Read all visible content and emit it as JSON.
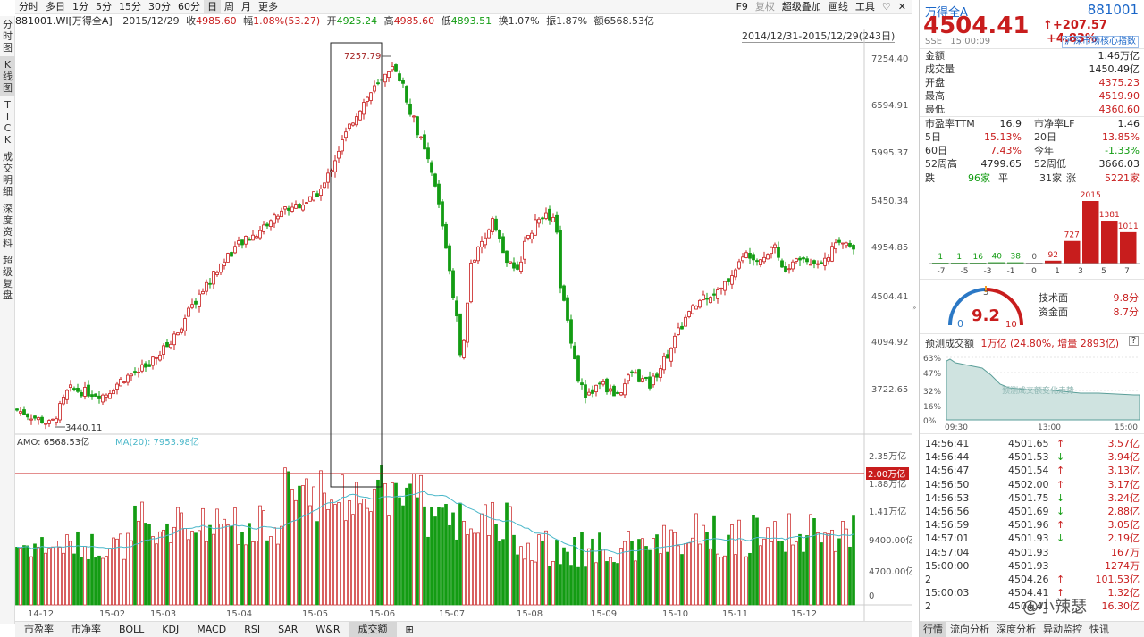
{
  "left_nav": [
    "分\n时\n图",
    "K\n线\n图",
    "T\nI\nC\nK",
    "成\n交\n明\n细",
    "深\n度\n资\n料",
    "超\n级\n复\n盘"
  ],
  "toolbar": {
    "periods": [
      "分时",
      "多日",
      "1分",
      "5分",
      "15分",
      "30分",
      "60分",
      "日",
      "周",
      "月",
      "更多"
    ],
    "active_period": "日",
    "right": [
      "F9",
      "复权",
      "超级叠加",
      "画线",
      "工具"
    ],
    "icons": [
      "heart-icon",
      "close-icon"
    ]
  },
  "infobar": {
    "code": "881001.WI[万得全A]",
    "date": "2015/12/29",
    "close_label": "收",
    "close": "4985.60",
    "change_label": "幅",
    "change": "1.08%(53.27)",
    "open_label": "开",
    "open": "4925.24",
    "high_label": "高",
    "high": "4985.60",
    "low_label": "低",
    "low": "4893.51",
    "turnover_label": "换",
    "turnover": "1.07%",
    "amplitude_label": "振",
    "amplitude": "1.87%",
    "amount_label": "额",
    "amount": "6568.53亿",
    "range": "2014/12/31-2015/12/29(243日)"
  },
  "main_chart": {
    "y_ticks": [
      "7254.40",
      "6594.91",
      "5995.37",
      "5450.34",
      "4954.85",
      "4504.41",
      "4094.92",
      "3722.65"
    ],
    "max_label": "7257.79",
    "min_label": "3440.11",
    "amo_label": "AMO: 6568.53亿",
    "ma_label": "MA(20): 7953.98亿",
    "vol_ticks": [
      "2.35万亿",
      "1.88万亿",
      "1.41万亿",
      "9400.00亿",
      "4700.00亿",
      "0"
    ],
    "vol_ref": "2.00万亿",
    "x_ticks": [
      "14-12",
      "15-02",
      "15-03",
      "15-04",
      "15-05",
      "15-06",
      "15-07",
      "15-08",
      "15-09",
      "15-10",
      "15-11",
      "15-12"
    ]
  },
  "bottom_tabs": [
    "市盈率",
    "市净率",
    "BOLL",
    "KDJ",
    "MACD",
    "RSI",
    "SAR",
    "W&R",
    "成交额"
  ],
  "bottom_active": "成交额",
  "quote": {
    "name": "万得全A",
    "code": "881001",
    "price": "4504.41",
    "change": "+207.57",
    "pct": "+4.83%",
    "exchange": "SSE",
    "time": "15:00:09",
    "index_link": "沪深市场核心指数"
  },
  "stats": [
    {
      "l": "金额",
      "r": "1.46万亿",
      "c": "blk"
    },
    {
      "l": "成交量",
      "r": "1450.49亿",
      "c": "blk"
    },
    {
      "l": "开盘",
      "r": "4375.23",
      "c": "red"
    },
    {
      "l": "最高",
      "r": "4519.90",
      "c": "red"
    },
    {
      "l": "最低",
      "r": "4360.60",
      "c": "red"
    }
  ],
  "stats2": [
    {
      "l": "市盈率TTM",
      "r": "16.9",
      "c": "blk",
      "l2": "市净率LF",
      "r2": "1.46",
      "c2": "blk"
    },
    {
      "l": "5日",
      "r": "15.13%",
      "c": "red",
      "l2": "20日",
      "r2": "13.85%",
      "c2": "red"
    },
    {
      "l": "60日",
      "r": "7.43%",
      "c": "red",
      "l2": "今年",
      "r2": "-1.33%",
      "c2": "green"
    },
    {
      "l": "52周高",
      "r": "4799.65",
      "c": "blk",
      "l2": "52周低",
      "r2": "3666.03",
      "c2": "blk"
    }
  ],
  "breadth": {
    "down_label": "跌",
    "down": "96家",
    "flat_label": "平",
    "flat": "31家",
    "up_label": "涨",
    "up": "5221家"
  },
  "distribution": {
    "x_labels": [
      "-7",
      "-5",
      "-3",
      "-1",
      "0",
      "1",
      "3",
      "5",
      "7"
    ],
    "values": [
      1,
      1,
      16,
      40,
      38,
      0,
      92,
      727,
      2015,
      1381,
      1011
    ],
    "value_labels": [
      "1",
      "1",
      "16",
      "40",
      "38",
      "0",
      "92",
      "727",
      "2015",
      "1381",
      "1011"
    ]
  },
  "gauge": {
    "score": "9.2",
    "min": "0",
    "mid": "5",
    "max": "10",
    "tech_label": "技术面",
    "tech": "9.8分",
    "fund_label": "资金面",
    "fund": "8.7分"
  },
  "forecast": {
    "label": "预测成交额",
    "value": "1万亿 (24.80%, 增量 2893亿)",
    "y_ticks": [
      "63%",
      "47%",
      "32%",
      "16%",
      "0%"
    ],
    "x_ticks": [
      "09:30",
      "13:00",
      "15:00"
    ],
    "watermark": "预测成交额变化走势"
  },
  "ticks": [
    {
      "t": "14:56:41",
      "p": "4501.65",
      "d": "up",
      "v": "3.57亿"
    },
    {
      "t": "14:56:44",
      "p": "4501.53",
      "d": "down",
      "v": "3.94亿"
    },
    {
      "t": "14:56:47",
      "p": "4501.54",
      "d": "up",
      "v": "3.13亿"
    },
    {
      "t": "14:56:50",
      "p": "4502.00",
      "d": "up",
      "v": "3.17亿"
    },
    {
      "t": "14:56:53",
      "p": "4501.75",
      "d": "down",
      "v": "3.24亿"
    },
    {
      "t": "14:56:56",
      "p": "4501.69",
      "d": "down",
      "v": "2.88亿"
    },
    {
      "t": "14:56:59",
      "p": "4501.96",
      "d": "up",
      "v": "3.05亿"
    },
    {
      "t": "14:57:01",
      "p": "4501.93",
      "d": "down",
      "v": "2.19亿"
    },
    {
      "t": "14:57:04",
      "p": "4501.93",
      "d": "",
      "v": "167万"
    },
    {
      "t": "15:00:00",
      "p": "4501.93",
      "d": "",
      "v": "1274万"
    },
    {
      "t": "2",
      "p": "4504.26",
      "d": "up",
      "v": "101.53亿"
    },
    {
      "t": "15:00:03",
      "p": "4504.41",
      "d": "up",
      "v": "1.32亿"
    },
    {
      "t": "2",
      "p": "4504.41",
      "d": "",
      "v": "16.30亿"
    }
  ],
  "right_tabs": [
    "行情",
    "流向分析",
    "深度分析",
    "异动监控",
    "快讯"
  ],
  "right_active": "行情",
  "watermark": "@小辣瑟"
}
